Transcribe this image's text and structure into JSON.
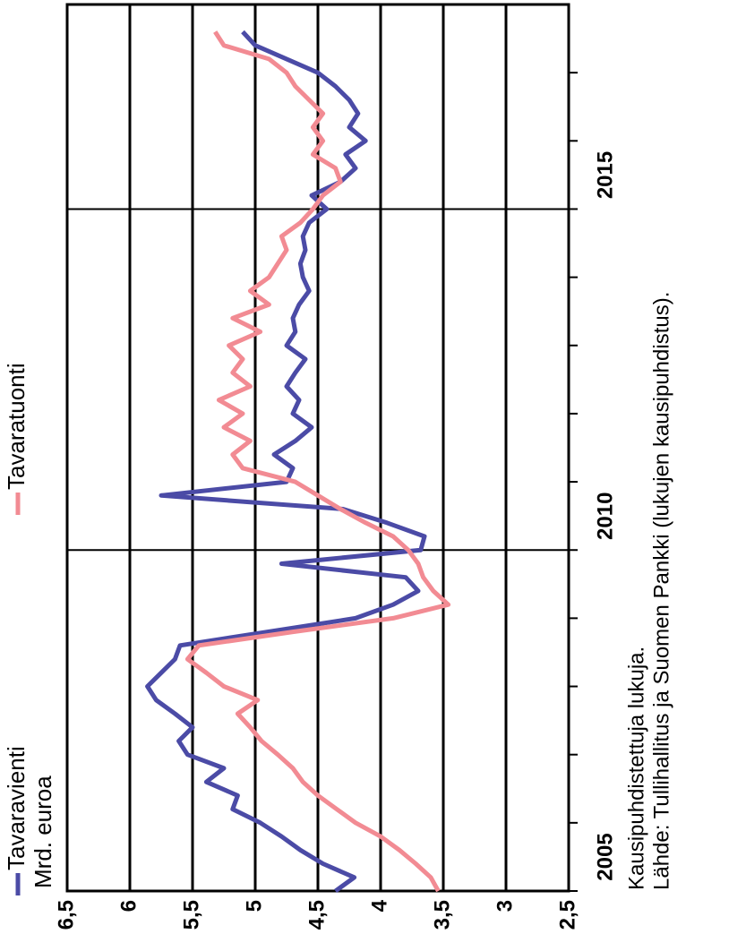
{
  "chart_data": {
    "type": "line",
    "ylabel": "Mrd. euroa",
    "notes": [
      "Kausipuhdistettuja lukuja.",
      "Lähde: Tullihallitus ja Suomen Pankki (lukujen kausipuhdistus)."
    ],
    "rotation": -90,
    "grid": true,
    "xlim": [
      2005,
      2018
    ],
    "xticks": [
      {
        "value": 2005,
        "label": "2005"
      },
      2010,
      2015
    ],
    "xticks_minor": [
      2006,
      2007,
      2008,
      2009,
      2011,
      2012,
      2013,
      2014,
      2016,
      2017
    ],
    "ylim": [
      2.5,
      6.5
    ],
    "yticks": [
      {
        "value": 2.5,
        "label": "2,5"
      },
      3,
      {
        "value": 3.5,
        "label": "3,5"
      },
      4,
      {
        "value": 4.5,
        "label": "4,5"
      },
      5,
      {
        "value": 5.5,
        "label": "5,5"
      },
      6,
      {
        "value": 6.5,
        "label": "6,5"
      }
    ],
    "x": [
      2005,
      2005.2,
      2005.4,
      2005.6,
      2005.8,
      2006,
      2006.2,
      2006.4,
      2006.6,
      2006.8,
      2007,
      2007.2,
      2007.4,
      2007.6,
      2007.8,
      2008,
      2008.2,
      2008.4,
      2008.6,
      2008.8,
      2009,
      2009.2,
      2009.4,
      2009.6,
      2009.8,
      2010,
      2010.2,
      2010.4,
      2010.6,
      2010.8,
      2011,
      2011.2,
      2011.4,
      2011.6,
      2011.8,
      2012,
      2012.2,
      2012.4,
      2012.6,
      2012.8,
      2013,
      2013.2,
      2013.4,
      2013.6,
      2013.8,
      2014,
      2014.2,
      2014.4,
      2014.6,
      2014.8,
      2015,
      2015.2,
      2015.4,
      2015.6,
      2015.8,
      2016,
      2016.2,
      2016.4,
      2016.6,
      2016.8,
      2017,
      2017.2,
      2017.4,
      2017.6
    ],
    "series": [
      {
        "name": "Tavaravienti",
        "color": "#4b4ba6",
        "values": [
          4.36,
          4.21,
          4.46,
          4.64,
          4.79,
          4.96,
          5.18,
          5.14,
          5.39,
          5.25,
          5.54,
          5.61,
          5.5,
          5.64,
          5.79,
          5.86,
          5.75,
          5.64,
          5.6,
          4.9,
          4.2,
          3.9,
          3.7,
          3.8,
          4.79,
          3.68,
          3.65,
          3.95,
          4.3,
          5.75,
          4.75,
          4.7,
          4.85,
          4.68,
          4.55,
          4.7,
          4.65,
          4.75,
          4.68,
          4.6,
          4.75,
          4.68,
          4.7,
          4.65,
          4.57,
          4.62,
          4.64,
          4.6,
          4.62,
          4.57,
          4.43,
          4.55,
          4.32,
          4.2,
          4.28,
          4.12,
          4.25,
          4.18,
          4.25,
          4.36,
          4.5,
          4.75,
          5.0,
          5.1
        ]
      },
      {
        "name": "Tavaratuonti",
        "color": "#f28b93",
        "values": [
          3.54,
          3.6,
          3.72,
          3.85,
          4.0,
          4.2,
          4.35,
          4.5,
          4.62,
          4.7,
          4.82,
          4.95,
          5.04,
          5.14,
          4.98,
          5.25,
          5.39,
          5.54,
          5.45,
          4.7,
          3.9,
          3.46,
          3.58,
          3.66,
          3.7,
          3.78,
          3.9,
          4.12,
          4.32,
          4.5,
          4.68,
          5.1,
          5.18,
          5.04,
          5.25,
          5.1,
          5.29,
          5.04,
          5.18,
          5.1,
          5.21,
          4.96,
          5.18,
          4.89,
          5.04,
          4.89,
          4.82,
          4.75,
          4.79,
          4.64,
          4.54,
          4.46,
          4.32,
          4.36,
          4.54,
          4.46,
          4.54,
          4.46,
          4.57,
          4.68,
          4.75,
          4.89,
          5.25,
          5.32
        ]
      }
    ]
  }
}
